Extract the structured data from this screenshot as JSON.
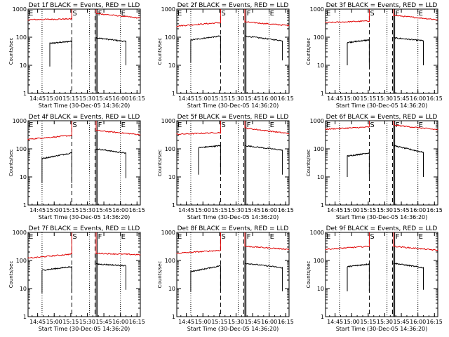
{
  "xlabel": "Start Time (30-Dec-05 14:36:20)",
  "ylabel": "Counts/sec",
  "x_tick_labels": [
    "14:45",
    "15:00",
    "15:15",
    "15:30",
    "15:45",
    "16:00",
    "16:15"
  ],
  "y_tick_labels": [
    "1",
    "10",
    "100",
    "1000"
  ],
  "marker_labels": {
    "s": "S",
    "f": "F",
    "e": "E"
  },
  "colors": {
    "events": "#000000",
    "lld": "#e00000"
  },
  "chart_data": [
    {
      "type": "line",
      "title": "Det 1f BLACK = Events, RED = LLD",
      "xlim": [
        "14:36:20",
        "16:18:00"
      ],
      "ylim": [
        1,
        1000
      ],
      "log_y": true,
      "vlines_dotted": [
        "14:49",
        "15:32",
        "16:00"
      ],
      "vlines_dashed": [
        "15:16",
        "15:37"
      ],
      "vlines_solid": [
        "15:38",
        "15:39"
      ],
      "markers": {
        "s": "15:16",
        "f": "15:39",
        "e": "16:00"
      },
      "series": [
        {
          "name": "BLACK = Events",
          "segments": [
            {
              "start": "14:56",
              "end": "15:16",
              "values_start": 60,
              "values_end": 72,
              "drop_to": 9
            },
            {
              "start": "15:38",
              "end": "16:05",
              "values_start": 95,
              "values_end": 70,
              "drop_to": 10
            }
          ]
        },
        {
          "name": "RED = LLD",
          "segments": [
            {
              "start": "14:36",
              "end": "15:16",
              "values_start": 420,
              "values_end": 450,
              "spike": 1000
            },
            {
              "start": "15:38",
              "end": "16:18",
              "values_start": 700,
              "values_end": 480,
              "spike": 1000
            }
          ]
        }
      ]
    },
    {
      "type": "line",
      "title": "Det 2f BLACK = Events, RED = LLD",
      "xlim": [
        "14:36:20",
        "16:18:00"
      ],
      "ylim": [
        1,
        1000
      ],
      "log_y": true,
      "vlines_dotted": [
        "14:49",
        "15:32",
        "16:00"
      ],
      "vlines_dashed": [
        "15:16",
        "15:37"
      ],
      "vlines_solid": [
        "15:38",
        "15:39"
      ],
      "markers": {
        "s": "15:16",
        "f": "15:39",
        "e": "16:00"
      },
      "series": [
        {
          "name": "BLACK = Events",
          "segments": [
            {
              "start": "14:49",
              "end": "15:16",
              "values_start": 80,
              "values_end": 110,
              "drop_to": 12
            },
            {
              "start": "15:38",
              "end": "16:12",
              "values_start": 110,
              "values_end": 75,
              "drop_to": 15
            }
          ]
        },
        {
          "name": "RED = LLD",
          "segments": [
            {
              "start": "14:36",
              "end": "15:16",
              "values_start": 250,
              "values_end": 330,
              "spike": 1000
            },
            {
              "start": "15:38",
              "end": "16:18",
              "values_start": 350,
              "values_end": 260,
              "spike": 1000
            }
          ]
        }
      ]
    },
    {
      "type": "line",
      "title": "Det 3f BLACK = Events, RED = LLD",
      "xlim": [
        "14:36:20",
        "16:18:00"
      ],
      "ylim": [
        1,
        1000
      ],
      "log_y": true,
      "vlines_dotted": [
        "14:49",
        "15:32",
        "16:00"
      ],
      "vlines_dashed": [
        "15:16",
        "15:37"
      ],
      "vlines_solid": [
        "15:38",
        "15:39"
      ],
      "markers": {
        "s": "15:16",
        "f": "15:39",
        "e": "16:00"
      },
      "series": [
        {
          "name": "BLACK = Events",
          "segments": [
            {
              "start": "14:56",
              "end": "15:16",
              "values_start": 65,
              "values_end": 80,
              "drop_to": 10
            },
            {
              "start": "15:38",
              "end": "16:05",
              "values_start": 95,
              "values_end": 75,
              "drop_to": 10
            }
          ]
        },
        {
          "name": "RED = LLD",
          "segments": [
            {
              "start": "14:36",
              "end": "15:16",
              "values_start": 330,
              "values_end": 380,
              "spike": 1000
            },
            {
              "start": "15:38",
              "end": "16:18",
              "values_start": 600,
              "values_end": 420,
              "spike": 1000
            }
          ]
        }
      ]
    },
    {
      "type": "line",
      "title": "Det 4f BLACK = Events, RED = LLD",
      "xlim": [
        "14:36:20",
        "16:18:00"
      ],
      "ylim": [
        1,
        1000
      ],
      "log_y": true,
      "vlines_dotted": [
        "14:49",
        "15:32",
        "16:00"
      ],
      "vlines_dashed": [
        "15:16",
        "15:37"
      ],
      "vlines_solid": [
        "15:38",
        "15:39"
      ],
      "markers": {
        "s": "15:16",
        "f": "15:39",
        "e": "16:00"
      },
      "series": [
        {
          "name": "BLACK = Events",
          "segments": [
            {
              "start": "14:49",
              "end": "15:16",
              "values_start": 45,
              "values_end": 72,
              "drop_to": 6
            },
            {
              "start": "15:38",
              "end": "16:05",
              "values_start": 100,
              "values_end": 70,
              "drop_to": 9
            }
          ]
        },
        {
          "name": "RED = LLD",
          "segments": [
            {
              "start": "14:36",
              "end": "15:16",
              "values_start": 220,
              "values_end": 300,
              "spike": 1000
            },
            {
              "start": "15:38",
              "end": "16:18",
              "values_start": 450,
              "values_end": 320,
              "spike": 1000
            }
          ]
        }
      ]
    },
    {
      "type": "line",
      "title": "Det 5f BLACK = Events, RED = LLD",
      "xlim": [
        "14:36:20",
        "16:18:00"
      ],
      "ylim": [
        1,
        1000
      ],
      "log_y": true,
      "vlines_dotted": [
        "14:49",
        "15:32",
        "16:00"
      ],
      "vlines_dashed": [
        "15:16",
        "15:37"
      ],
      "vlines_solid": [
        "15:38",
        "15:39"
      ],
      "markers": {
        "s": "15:16",
        "f": "15:39",
        "e": "16:00"
      },
      "series": [
        {
          "name": "BLACK = Events",
          "segments": [
            {
              "start": "14:56",
              "end": "15:16",
              "values_start": 110,
              "values_end": 130,
              "drop_to": 12
            },
            {
              "start": "15:38",
              "end": "16:12",
              "values_start": 130,
              "values_end": 90,
              "drop_to": 12
            }
          ]
        },
        {
          "name": "RED = LLD",
          "segments": [
            {
              "start": "14:36",
              "end": "15:16",
              "values_start": 330,
              "values_end": 380,
              "spike": 1000
            },
            {
              "start": "15:38",
              "end": "16:18",
              "values_start": 550,
              "values_end": 350,
              "spike": 1000
            }
          ]
        }
      ]
    },
    {
      "type": "line",
      "title": "Det 6f BLACK = Events, RED = LLD",
      "xlim": [
        "14:36:20",
        "16:18:00"
      ],
      "ylim": [
        1,
        1000
      ],
      "log_y": true,
      "vlines_dotted": [
        "14:49",
        "15:32",
        "16:00"
      ],
      "vlines_dashed": [
        "15:16",
        "15:37"
      ],
      "vlines_solid": [
        "15:38",
        "15:39"
      ],
      "markers": {
        "s": "15:16",
        "f": "15:39",
        "e": "16:00"
      },
      "series": [
        {
          "name": "BLACK = Events",
          "segments": [
            {
              "start": "14:56",
              "end": "15:16",
              "values_start": 55,
              "values_end": 72,
              "drop_to": 10
            },
            {
              "start": "15:38",
              "end": "16:05",
              "values_start": 130,
              "values_end": 75,
              "drop_to": 10
            }
          ]
        },
        {
          "name": "RED = LLD",
          "segments": [
            {
              "start": "14:36",
              "end": "15:16",
              "values_start": 500,
              "values_end": 600,
              "spike": 1000
            },
            {
              "start": "15:38",
              "end": "16:18",
              "values_start": 700,
              "values_end": 480,
              "spike": 1000
            }
          ]
        }
      ]
    },
    {
      "type": "line",
      "title": "Det 7f BLACK = Events, RED = LLD",
      "xlim": [
        "14:36:20",
        "16:18:00"
      ],
      "ylim": [
        1,
        1000
      ],
      "log_y": true,
      "vlines_dotted": [
        "14:49",
        "15:32",
        "16:00"
      ],
      "vlines_dashed": [
        "15:16",
        "15:37"
      ],
      "vlines_solid": [
        "15:38",
        "15:39"
      ],
      "markers": {
        "s": "15:16",
        "f": "15:39",
        "e": "16:00"
      },
      "series": [
        {
          "name": "BLACK = Events",
          "segments": [
            {
              "start": "14:49",
              "end": "15:16",
              "values_start": 45,
              "values_end": 60,
              "drop_to": 7
            },
            {
              "start": "15:38",
              "end": "16:05",
              "values_start": 75,
              "values_end": 65,
              "drop_to": 9
            }
          ]
        },
        {
          "name": "RED = LLD",
          "segments": [
            {
              "start": "14:36",
              "end": "15:16",
              "values_start": 120,
              "values_end": 170,
              "spike": 1000
            },
            {
              "start": "15:38",
              "end": "16:18",
              "values_start": 180,
              "values_end": 160,
              "spike": 1000
            }
          ]
        }
      ]
    },
    {
      "type": "line",
      "title": "Det 8f BLACK = Events, RED = LLD",
      "xlim": [
        "14:36:20",
        "16:18:00"
      ],
      "ylim": [
        1,
        1000
      ],
      "log_y": true,
      "vlines_dotted": [
        "14:49",
        "15:32",
        "16:00"
      ],
      "vlines_dashed": [
        "15:16",
        "15:37"
      ],
      "vlines_solid": [
        "15:38",
        "15:39"
      ],
      "markers": {
        "s": "15:16",
        "f": "15:39",
        "e": "16:00"
      },
      "series": [
        {
          "name": "BLACK = Events",
          "segments": [
            {
              "start": "14:49",
              "end": "15:16",
              "values_start": 40,
              "values_end": 65,
              "drop_to": 8
            },
            {
              "start": "15:38",
              "end": "16:12",
              "values_start": 80,
              "values_end": 55,
              "drop_to": 8
            }
          ]
        },
        {
          "name": "RED = LLD",
          "segments": [
            {
              "start": "14:36",
              "end": "15:16",
              "values_start": 180,
              "values_end": 230,
              "spike": 1000
            },
            {
              "start": "15:38",
              "end": "16:18",
              "values_start": 320,
              "values_end": 250,
              "spike": 1000
            }
          ]
        }
      ]
    },
    {
      "type": "line",
      "title": "Det 9f BLACK = Events, RED = LLD",
      "xlim": [
        "14:36:20",
        "16:18:00"
      ],
      "ylim": [
        1,
        1000
      ],
      "log_y": true,
      "vlines_dotted": [
        "14:49",
        "15:32",
        "16:00"
      ],
      "vlines_dashed": [
        "15:16",
        "15:37"
      ],
      "vlines_solid": [
        "15:38",
        "15:39"
      ],
      "markers": {
        "s": "15:16",
        "f": "15:39",
        "e": "16:00"
      },
      "series": [
        {
          "name": "BLACK = Events",
          "segments": [
            {
              "start": "14:56",
              "end": "15:16",
              "values_start": 60,
              "values_end": 75,
              "drop_to": 8
            },
            {
              "start": "15:38",
              "end": "16:05",
              "values_start": 80,
              "values_end": 55,
              "drop_to": 9
            }
          ]
        },
        {
          "name": "RED = LLD",
          "segments": [
            {
              "start": "14:36",
              "end": "15:16",
              "values_start": 250,
              "values_end": 320,
              "spike": 1000
            },
            {
              "start": "15:38",
              "end": "16:18",
              "values_start": 320,
              "values_end": 230,
              "spike": 1000
            }
          ]
        }
      ]
    }
  ]
}
